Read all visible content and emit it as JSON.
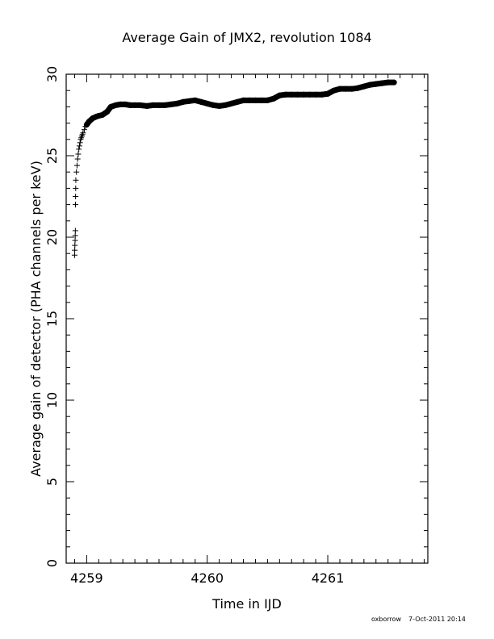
{
  "footer": {
    "author": "oxborrow",
    "date": "7-Oct-2011 20:14"
  },
  "chart_data": {
    "type": "scatter",
    "title": "Average Gain of JMX2, revolution 1084",
    "xlabel": "Time in IJD",
    "ylabel": "Average gain of detector (PHA channels per keV)",
    "xlim": [
      4258.83,
      4261.83
    ],
    "ylim": [
      0,
      30
    ],
    "x_ticks": [
      4259,
      4260,
      4261
    ],
    "y_ticks": [
      0,
      5,
      10,
      15,
      20,
      25,
      30
    ],
    "x_tick_labels": [
      "4259",
      "4260",
      "4261"
    ],
    "y_tick_labels": [
      "0",
      "5",
      "10",
      "15",
      "20",
      "25",
      "30"
    ],
    "grid": false,
    "marker": "plus",
    "series": [
      {
        "x": [
          4258.9,
          4258.901,
          4258.902,
          4258.904,
          4258.905,
          4258.906,
          4258.907,
          4258.908,
          4258.909,
          4258.91,
          4258.915,
          4258.92,
          4258.925,
          4258.93,
          4258.935,
          4258.94,
          4258.945,
          4258.95,
          4258.955,
          4258.96,
          4258.965,
          4258.97,
          4258.98,
          4258.99,
          4259.0,
          4259.02,
          4259.05,
          4259.08,
          4259.1,
          4259.13,
          4259.17,
          4259.2,
          4259.24,
          4259.28,
          4259.32,
          4259.36,
          4259.4,
          4259.44,
          4259.5,
          4259.55,
          4259.6,
          4259.65,
          4259.7,
          4259.75,
          4259.8,
          4259.85,
          4259.9,
          4259.95,
          4260.0,
          4260.05,
          4260.1,
          4260.15,
          4260.2,
          4260.25,
          4260.3,
          4260.35,
          4260.4,
          4260.45,
          4260.5,
          4260.55,
          4260.6,
          4260.65,
          4260.7,
          4260.75,
          4260.8,
          4260.85,
          4260.9,
          4260.95,
          4261.0,
          4261.05,
          4261.1,
          4261.15,
          4261.2,
          4261.25,
          4261.3,
          4261.35,
          4261.4,
          4261.45,
          4261.5,
          4261.55
        ],
        "y": [
          18.9,
          19.2,
          19.5,
          19.8,
          20.1,
          20.4,
          22.0,
          22.5,
          23.0,
          23.5,
          24.0,
          24.4,
          24.8,
          25.1,
          25.4,
          25.6,
          25.8,
          26.0,
          26.1,
          26.2,
          26.3,
          26.4,
          26.6,
          26.8,
          26.9,
          27.1,
          27.3,
          27.4,
          27.45,
          27.5,
          27.7,
          28.0,
          28.1,
          28.15,
          28.15,
          28.1,
          28.1,
          28.1,
          28.05,
          28.1,
          28.1,
          28.1,
          28.15,
          28.2,
          28.3,
          28.35,
          28.4,
          28.3,
          28.2,
          28.1,
          28.05,
          28.1,
          28.2,
          28.3,
          28.4,
          28.4,
          28.4,
          28.4,
          28.4,
          28.5,
          28.7,
          28.75,
          28.75,
          28.75,
          28.75,
          28.75,
          28.75,
          28.75,
          28.8,
          29.0,
          29.1,
          29.1,
          29.1,
          29.15,
          29.25,
          29.35,
          29.4,
          29.45,
          29.5,
          29.5
        ]
      }
    ]
  }
}
